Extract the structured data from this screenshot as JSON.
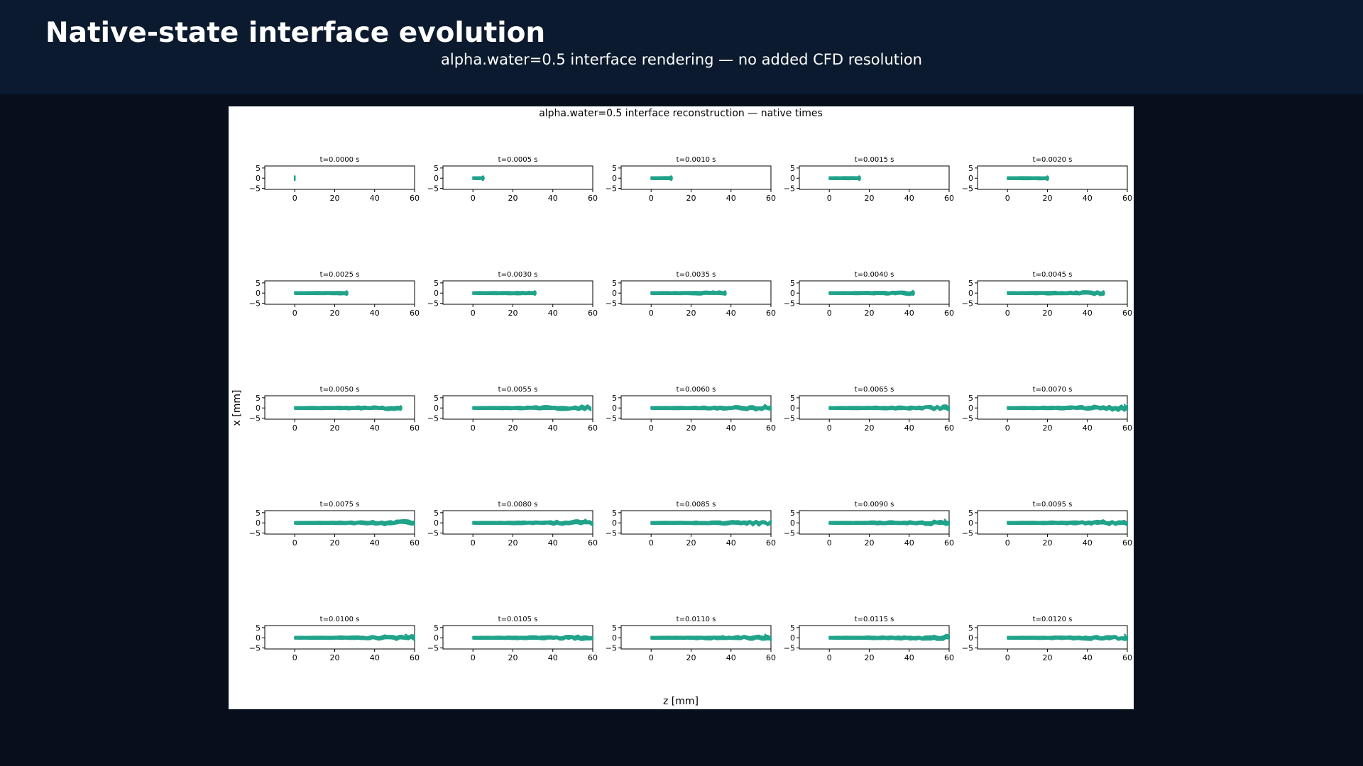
{
  "header": {
    "title": "Native-state interface evolution",
    "subtitle": "alpha.water=0.5 interface rendering — no added CFD resolution"
  },
  "chart_data": {
    "type": "line",
    "title": "alpha.water=0.5 interface reconstruction — native times",
    "xlabel": "z [mm]",
    "ylabel": "x [mm]",
    "xlim": [
      -15,
      60
    ],
    "ylim": [
      -5.5,
      6
    ],
    "xticks": [
      "0",
      "20",
      "40",
      "60"
    ],
    "yticks": [
      "5",
      "0",
      "−5"
    ],
    "grid": false,
    "layout": {
      "rows": 5,
      "cols": 5
    },
    "series_color": "#21a38a",
    "panels": [
      {
        "label": "t=0.0000 s",
        "z_max": 0.5
      },
      {
        "label": "t=0.0005 s",
        "z_max": 5
      },
      {
        "label": "t=0.0010 s",
        "z_max": 10
      },
      {
        "label": "t=0.0015 s",
        "z_max": 15
      },
      {
        "label": "t=0.0020 s",
        "z_max": 20
      },
      {
        "label": "t=0.0025 s",
        "z_max": 26
      },
      {
        "label": "t=0.0030 s",
        "z_max": 31
      },
      {
        "label": "t=0.0035 s",
        "z_max": 37
      },
      {
        "label": "t=0.0040 s",
        "z_max": 42
      },
      {
        "label": "t=0.0045 s",
        "z_max": 48
      },
      {
        "label": "t=0.0050 s",
        "z_max": 53
      },
      {
        "label": "t=0.0055 s",
        "z_max": 59
      },
      {
        "label": "t=0.0060 s",
        "z_max": 60
      },
      {
        "label": "t=0.0065 s",
        "z_max": 60
      },
      {
        "label": "t=0.0070 s",
        "z_max": 60
      },
      {
        "label": "t=0.0075 s",
        "z_max": 60
      },
      {
        "label": "t=0.0080 s",
        "z_max": 60
      },
      {
        "label": "t=0.0085 s",
        "z_max": 60
      },
      {
        "label": "t=0.0090 s",
        "z_max": 60
      },
      {
        "label": "t=0.0095 s",
        "z_max": 60
      },
      {
        "label": "t=0.0100 s",
        "z_max": 60
      },
      {
        "label": "t=0.0105 s",
        "z_max": 60
      },
      {
        "label": "t=0.0110 s",
        "z_max": 60
      },
      {
        "label": "t=0.0115 s",
        "z_max": 60
      },
      {
        "label": "t=0.0120 s",
        "z_max": 60
      }
    ]
  }
}
